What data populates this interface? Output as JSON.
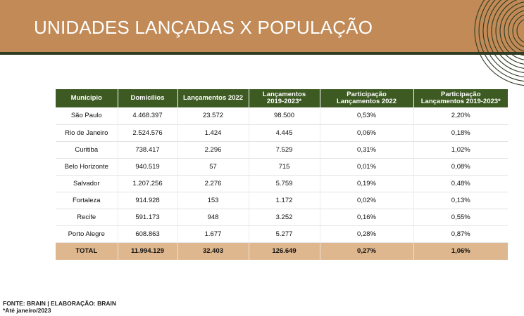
{
  "header": {
    "title": "UNIDADES LANÇADAS X POPULAÇÃO",
    "background_color": "#c18a56",
    "accent_line_color": "#2f3b22"
  },
  "table": {
    "header_color": "#3d5a23",
    "total_row_color": "#dfb78f",
    "columns": [
      [
        "Município"
      ],
      [
        "Domicílios"
      ],
      [
        "Lançamentos 2022"
      ],
      [
        "Lançamentos",
        "2019-2023*"
      ],
      [
        "Participação",
        "Lançamentos 2022"
      ],
      [
        "Participação",
        "Lançamentos 2019-2023*"
      ]
    ],
    "rows": [
      [
        "São Paulo",
        "4.468.397",
        "23.572",
        "98.500",
        "0,53%",
        "2,20%"
      ],
      [
        "Rio de Janeiro",
        "2.524.576",
        "1.424",
        "4.445",
        "0,06%",
        "0,18%"
      ],
      [
        "Curitiba",
        "738.417",
        "2.296",
        "7.529",
        "0,31%",
        "1,02%"
      ],
      [
        "Belo Horizonte",
        "940.519",
        "57",
        "715",
        "0,01%",
        "0,08%"
      ],
      [
        "Salvador",
        "1.207.256",
        "2.276",
        "5.759",
        "0,19%",
        "0,48%"
      ],
      [
        "Fortaleza",
        "914.928",
        "153",
        "1.172",
        "0,02%",
        "0,13%"
      ],
      [
        "Recife",
        "591.173",
        "948",
        "3.252",
        "0,16%",
        "0,55%"
      ],
      [
        "Porto Alegre",
        "608.863",
        "1.677",
        "5.277",
        "0,28%",
        "0,87%"
      ]
    ],
    "total": [
      "TOTAL",
      "11.994.129",
      "32.403",
      "126.649",
      "0,27%",
      "1,06%"
    ]
  },
  "footer": {
    "source": "FONTE: BRAIN | ELABORAÇÃO: BRAIN",
    "note": "*Até janeiro/2023"
  }
}
